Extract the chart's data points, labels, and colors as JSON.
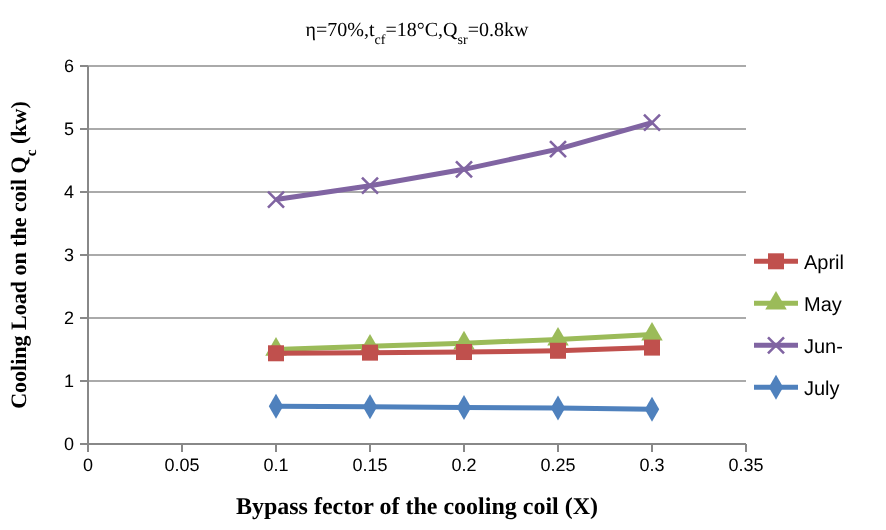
{
  "chart_data": {
    "type": "line",
    "title": "η=70%,t$_{cf}$=18°C,Q$_{sr}$=0.8kw",
    "xlabel": "Bypass fector of the cooling coil  (X)",
    "ylabel": "Cooling Load on the coil Q$_{c}$ (kw)",
    "x": [
      0.1,
      0.15,
      0.2,
      0.25,
      0.3
    ],
    "xlim": [
      0,
      0.35
    ],
    "xticks": [
      0,
      0.05,
      0.1,
      0.15,
      0.2,
      0.25,
      0.3,
      0.35
    ],
    "ylim": [
      0,
      6
    ],
    "yticks": [
      0,
      1,
      2,
      3,
      4,
      5,
      6
    ],
    "grid": "y",
    "legend": "right",
    "series": [
      {
        "name": "April",
        "color": "#c0504d",
        "marker": "square",
        "values": [
          1.44,
          1.45,
          1.46,
          1.48,
          1.53
        ]
      },
      {
        "name": "May",
        "color": "#9bbb59",
        "marker": "triangle",
        "values": [
          1.5,
          1.55,
          1.6,
          1.66,
          1.74
        ]
      },
      {
        "name": "Jun-",
        "color": "#8064a2",
        "marker": "cross",
        "values": [
          3.88,
          4.1,
          4.36,
          4.68,
          5.1
        ]
      },
      {
        "name": "July",
        "color": "#4f81bd",
        "marker": "diamond",
        "values": [
          0.6,
          0.59,
          0.58,
          0.57,
          0.55
        ]
      }
    ]
  }
}
